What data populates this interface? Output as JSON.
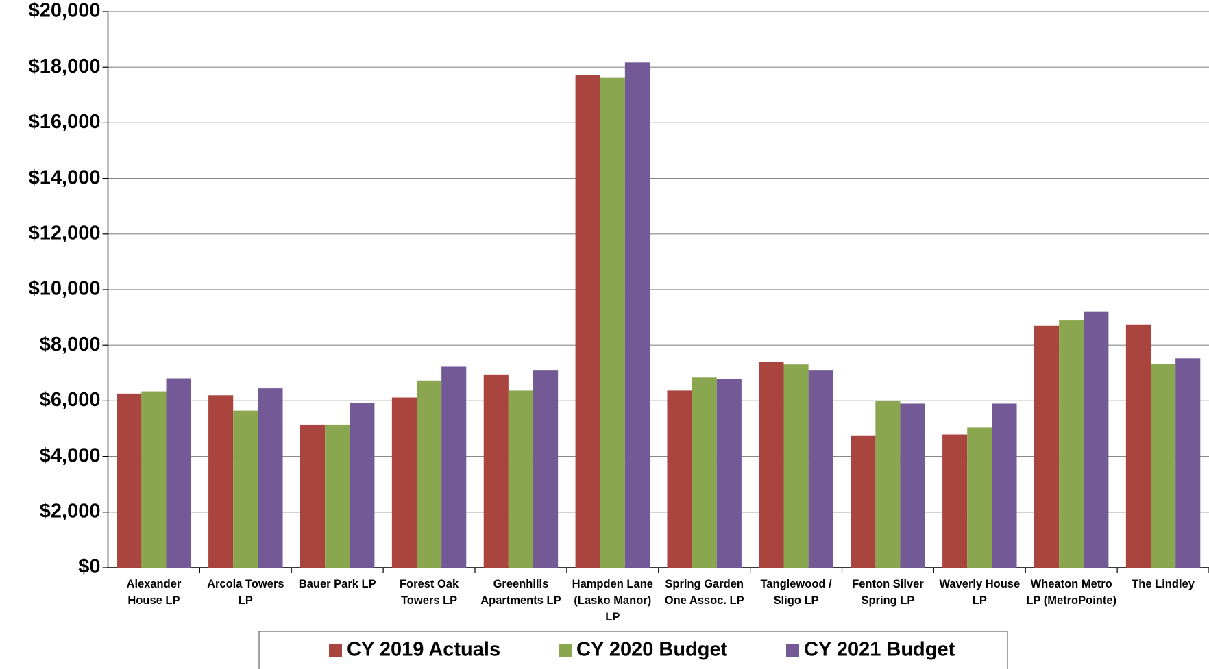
{
  "chart_data": {
    "type": "bar",
    "categories": [
      "Alexander House LP",
      "Arcola Towers LP",
      "Bauer Park LP",
      "Forest Oak Towers LP",
      "Greenhills Apartments LP",
      "Hampden Lane (Lasko Manor) LP",
      "Spring Garden One Assoc. LP",
      "Tanglewood / Sligo LP",
      "Fenton Silver Spring LP",
      "Waverly House LP",
      "Wheaton Metro LP (MetroPointe)",
      "The Lindley"
    ],
    "series": [
      {
        "name": "CY 2019 Actuals",
        "color": "#a9443f",
        "values": [
          6260,
          6200,
          5150,
          6120,
          6950,
          17730,
          6370,
          7400,
          4760,
          4790,
          8700,
          8750
        ]
      },
      {
        "name": "CY 2020 Budget",
        "color": "#8aa64f",
        "values": [
          6340,
          5650,
          5150,
          6730,
          6370,
          17620,
          6840,
          7310,
          6010,
          5040,
          8890,
          7340
        ]
      },
      {
        "name": "CY 2021 Budget",
        "color": "#735a96",
        "values": [
          6810,
          6450,
          5930,
          7230,
          7090,
          18170,
          6790,
          7090,
          5900,
          5900,
          9220,
          7530
        ]
      }
    ],
    "ylim": [
      0,
      20000
    ],
    "yticks": [
      {
        "value": 0,
        "label": "$0"
      },
      {
        "value": 2000,
        "label": "$2,000"
      },
      {
        "value": 4000,
        "label": "$4,000"
      },
      {
        "value": 6000,
        "label": "$6,000"
      },
      {
        "value": 8000,
        "label": "$8,000"
      },
      {
        "value": 10000,
        "label": "$10,000"
      },
      {
        "value": 12000,
        "label": "$12,000"
      },
      {
        "value": 14000,
        "label": "$14,000"
      },
      {
        "value": 16000,
        "label": "$16,000"
      },
      {
        "value": 18000,
        "label": "$18,000"
      },
      {
        "value": 20000,
        "label": "$20,000"
      }
    ],
    "grid": true,
    "legend": "bottom"
  }
}
